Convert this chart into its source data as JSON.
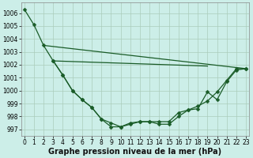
{
  "background_color": "#cceee8",
  "grid_color": "#aaccbb",
  "line_color": "#1a5c28",
  "marker": "D",
  "marker_size": 2.5,
  "xlabel": "Graphe pression niveau de la mer (hPa)",
  "ylim": [
    996.5,
    1006.8
  ],
  "xlim": [
    -0.3,
    23.3
  ],
  "yticks": [
    997,
    998,
    999,
    1000,
    1001,
    1002,
    1003,
    1004,
    1005,
    1006
  ],
  "xticks": [
    0,
    1,
    2,
    3,
    4,
    5,
    6,
    7,
    8,
    9,
    10,
    11,
    12,
    13,
    14,
    15,
    16,
    17,
    18,
    19,
    20,
    21,
    22,
    23
  ],
  "xlabel_fontsize": 7,
  "tick_fontsize": 5.5,
  "curve1_x": [
    0,
    1,
    2,
    3,
    4,
    5,
    6,
    7,
    8,
    9,
    10,
    11,
    12,
    13,
    14,
    15,
    16,
    17,
    18,
    19,
    20,
    21,
    22,
    23
  ],
  "curve1_y": [
    1006.3,
    1005.1,
    1003.5,
    1002.3,
    1001.2,
    1000.0,
    999.3,
    998.7,
    997.8,
    997.5,
    997.2,
    997.5,
    997.6,
    997.6,
    997.6,
    997.6,
    998.3,
    998.5,
    998.6,
    999.9,
    999.3,
    1000.7,
    1001.6,
    1001.7
  ],
  "curve2_x": [
    2,
    23
  ],
  "curve2_y": [
    1003.5,
    1001.7
  ],
  "curve3_x": [
    3,
    4,
    5,
    6,
    7,
    8,
    9,
    10,
    11,
    12,
    13,
    14,
    15,
    16,
    17,
    18,
    19,
    20,
    21,
    22,
    23
  ],
  "curve3_y": [
    1002.3,
    1001.2,
    1000.0,
    999.3,
    998.7,
    997.8,
    997.2,
    997.2,
    997.4,
    997.6,
    997.6,
    997.4,
    997.4,
    998.0,
    998.5,
    998.8,
    999.2,
    999.9,
    1000.8,
    1001.7,
    1001.7
  ],
  "curve4_x": [
    3,
    19
  ],
  "curve4_y": [
    1002.3,
    1001.9
  ],
  "lw": 0.9
}
